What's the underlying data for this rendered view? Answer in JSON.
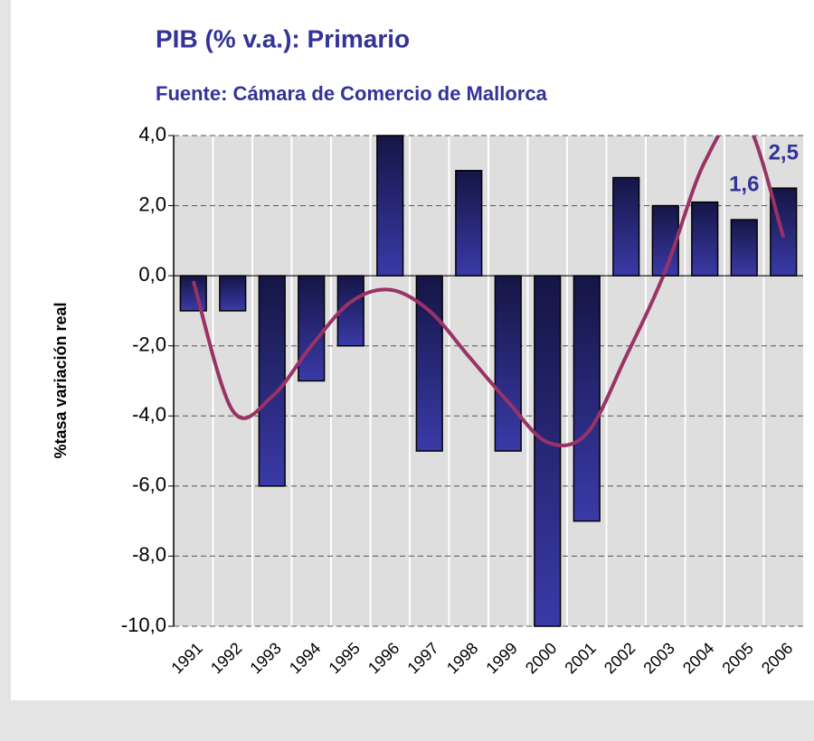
{
  "chart_data": {
    "type": "bar",
    "title": "PIB (% v.a.): Primario",
    "subtitle": "Fuente: Cámara de Comercio de Mallorca",
    "y_label": "%tasa variación real",
    "categories": [
      "1991",
      "1992",
      "1993",
      "1994",
      "1995",
      "1996",
      "1997",
      "1998",
      "1999",
      "2000",
      "2001",
      "2002",
      "2003",
      "2004",
      "2005",
      "2006"
    ],
    "series": [
      {
        "type": "bar",
        "color": "#3a3aa8",
        "values": [
          -1,
          -1,
          -6,
          -3,
          -2,
          4,
          -5,
          3,
          -5,
          -10,
          -7,
          2.8,
          2,
          2.1,
          1.6,
          2.5
        ],
        "value_labels": [
          null,
          null,
          null,
          null,
          null,
          null,
          null,
          null,
          null,
          null,
          null,
          null,
          null,
          null,
          "1,6",
          "2,5"
        ]
      },
      {
        "type": "line",
        "color": "#993366",
        "values": [
          -0.15,
          -3.85,
          -3.45,
          -2.0,
          -0.75,
          -0.4,
          -1.0,
          -2.3,
          -3.6,
          -4.75,
          -4.5,
          -2.3,
          0.15,
          3.25,
          4.5,
          1.1
        ]
      }
    ],
    "ylim": [
      -10,
      4
    ],
    "yticks": [
      {
        "value": -10,
        "label": "-10,0"
      },
      {
        "value": -8,
        "label": "-8,0"
      },
      {
        "value": -6,
        "label": "-6,0"
      },
      {
        "value": -4,
        "label": "-4,0"
      },
      {
        "value": -2,
        "label": "-2,0"
      },
      {
        "value": 0,
        "label": "0,0"
      },
      {
        "value": 2,
        "label": "2,0"
      },
      {
        "value": 4,
        "label": "4,0"
      }
    ],
    "grid": true
  }
}
